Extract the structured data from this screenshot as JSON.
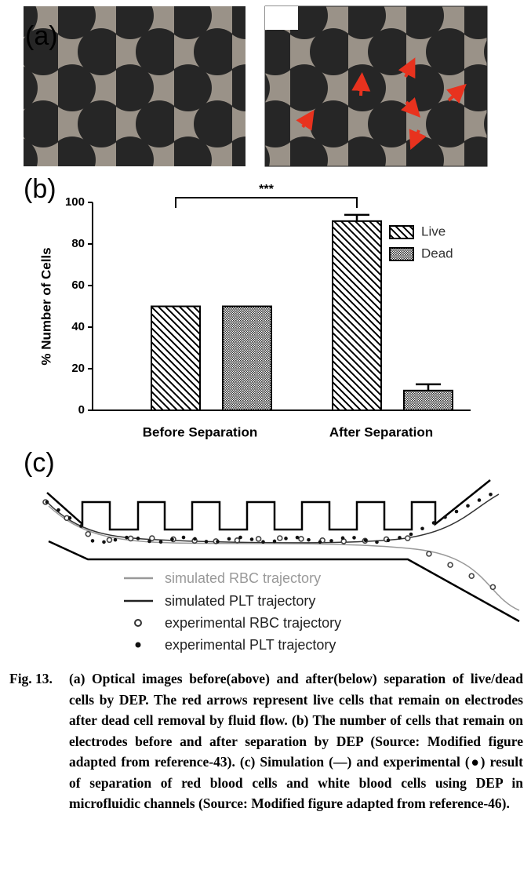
{
  "panel_labels": {
    "a": "(a)",
    "b": "(b)",
    "c": "(c)"
  },
  "chart_data": {
    "type": "bar",
    "categories": [
      "Before Separation",
      "After Separation"
    ],
    "y_label": "% Number of Cells",
    "annotation": "***",
    "series": [
      {
        "name": "Live",
        "color": "#000000",
        "pattern": "hatch",
        "values": [
          50,
          91
        ],
        "errors": [
          null,
          3
        ]
      },
      {
        "name": "Dead",
        "color": "#000000",
        "pattern": "dots",
        "values": [
          50,
          9.5
        ],
        "errors": [
          null,
          3
        ]
      }
    ],
    "ylim": [
      0,
      100
    ],
    "yticks": [
      0,
      20,
      40,
      60,
      80,
      100
    ],
    "legend": "upper right"
  },
  "diagram": {
    "legend": [
      "simulated RBC trajectory",
      "simulated PLT trajectory",
      "experimental RBC trajectory",
      "experimental PLT trajectory"
    ]
  },
  "caption": {
    "label": "Fig. 13.",
    "text": "(a) Optical images before(above) and after(below) separation of live/dead cells by DEP. The red arrows represent live cells that remain on electrodes after dead cell removal by fluid flow. (b) The number of cells that remain on electrodes before and after separation by DEP (Source: Modified figure adapted from reference-43). (c) Simulation (—) and experimental (●) result of separation of red blood cells and white blood cells using DEP in microfluidic channels (Source: Modified figure adapted from reference-46)."
  }
}
